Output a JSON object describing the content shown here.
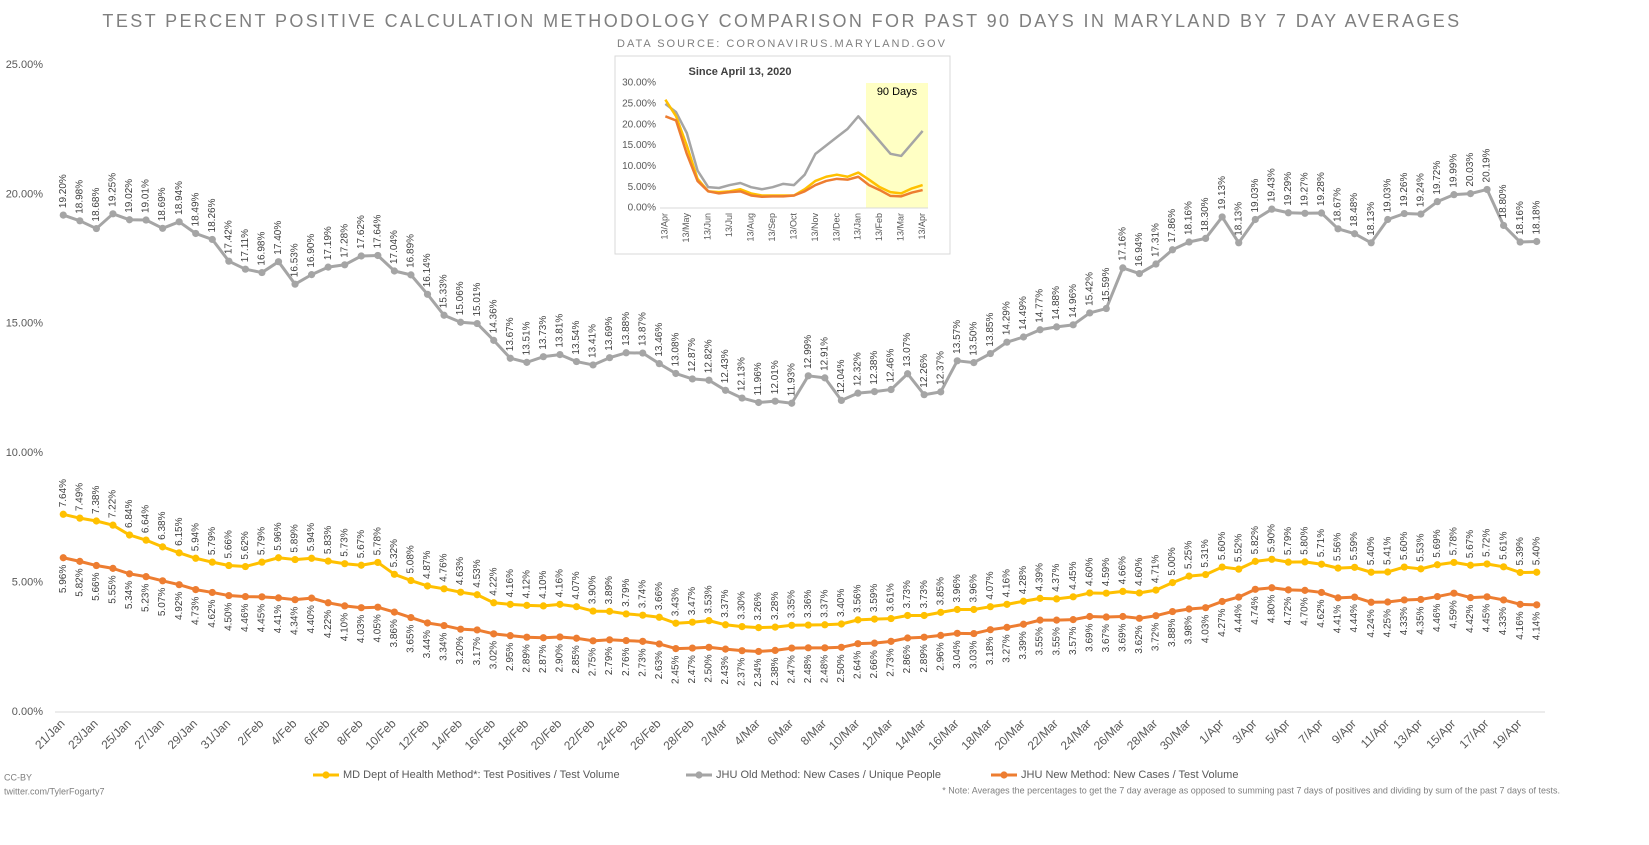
{
  "chart_data": [
    {
      "type": "line",
      "title": "TEST PERCENT POSITIVE CALCULATION METHODOLOGY COMPARISON FOR PAST 90 DAYS IN MARYLAND BY 7 DAY AVERAGES",
      "subtitle": "DATA SOURCE: CORONAVIRUS.MARYLAND.GOV",
      "categories": [
        "21/Jan",
        null,
        "23/Jan",
        null,
        "25/Jan",
        null,
        "27/Jan",
        null,
        "29/Jan",
        null,
        "31/Jan",
        null,
        "2/Feb",
        null,
        "4/Feb",
        null,
        "6/Feb",
        null,
        "8/Feb",
        null,
        "10/Feb",
        null,
        "12/Feb",
        null,
        "14/Feb",
        null,
        "16/Feb",
        null,
        "18/Feb",
        null,
        "20/Feb",
        null,
        "22/Feb",
        null,
        "24/Feb",
        null,
        "26/Feb",
        null,
        "28/Feb",
        null,
        "2/Mar",
        null,
        "4/Mar",
        null,
        "6/Mar",
        null,
        "8/Mar",
        null,
        "10/Mar",
        null,
        "12/Mar",
        null,
        "14/Mar",
        null,
        "16/Mar",
        null,
        "18/Mar",
        null,
        "20/Mar",
        null,
        "22/Mar",
        null,
        "24/Mar",
        null,
        "26/Mar",
        null,
        "28/Mar",
        null,
        "30/Mar",
        null,
        "1/Apr",
        null,
        "3/Apr",
        null,
        "5/Apr",
        null,
        "7/Apr",
        null,
        "9/Apr",
        null,
        "11/Apr",
        null,
        "13/Apr",
        null,
        "15/Apr",
        null,
        "17/Apr",
        null,
        "19/Apr",
        null
      ],
      "ylim": [
        0,
        25
      ],
      "yticks": [
        {
          "value": 0,
          "label": "0.00%"
        },
        {
          "value": 5,
          "label": "5.00%"
        },
        {
          "value": 10,
          "label": "10.00%"
        },
        {
          "value": 15,
          "label": "15.00%"
        },
        {
          "value": 20,
          "label": "20.00%"
        },
        {
          "value": 25,
          "label": "25.00%"
        }
      ],
      "grid": false,
      "legend": "bottom",
      "series": [
        {
          "name": "MD Dept of Health Method*: Test Positives / Test Volume",
          "color": "#ffc000",
          "label_position": "above",
          "values": [
            7.64,
            7.49,
            7.38,
            7.22,
            6.84,
            6.64,
            6.38,
            6.15,
            5.94,
            5.79,
            5.66,
            5.62,
            5.79,
            5.96,
            5.89,
            5.94,
            5.83,
            5.73,
            5.67,
            5.78,
            5.32,
            5.08,
            4.87,
            4.76,
            4.63,
            4.53,
            4.22,
            4.16,
            4.12,
            4.1,
            4.16,
            4.07,
            3.9,
            3.89,
            3.79,
            3.74,
            3.66,
            3.43,
            3.47,
            3.53,
            3.37,
            3.3,
            3.26,
            3.28,
            3.35,
            3.36,
            3.37,
            3.4,
            3.56,
            3.59,
            3.61,
            3.73,
            3.73,
            3.85,
            3.96,
            3.96,
            4.07,
            4.16,
            4.28,
            4.39,
            4.37,
            4.45,
            4.6,
            4.59,
            4.66,
            4.6,
            4.71,
            5.0,
            5.25,
            5.31,
            5.6,
            5.52,
            5.82,
            5.9,
            5.79,
            5.8,
            5.71,
            5.56,
            5.59,
            5.4,
            5.41,
            5.6,
            5.53,
            5.69,
            5.78,
            5.67,
            5.72,
            5.61,
            5.39,
            5.4
          ],
          "value_labels": [
            "7.64%",
            "7.49%",
            "7.38%",
            "7.22%",
            "6.84%",
            "6.64%",
            "6.38%",
            "6.15%",
            "5.94%",
            "5.79%",
            "5.66%",
            "5.62%",
            "5.79%",
            "5.96%",
            "5.89%",
            "5.94%",
            "5.83%",
            "5.73%",
            "5.67%",
            "5.78%",
            "5.32%",
            "5.08%",
            "4.87%",
            "4.76%",
            "4.63%",
            "4.53%",
            "4.22%",
            "4.16%",
            "4.12%",
            "4.10%",
            "4.16%",
            "4.07%",
            "3.90%",
            "3.89%",
            "3.79%",
            "3.74%",
            "3.66%",
            "3.43%",
            "3.47%",
            "3.53%",
            "3.37%",
            "3.30%",
            "3.26%",
            "3.28%",
            "3.35%",
            "3.36%",
            "3.37%",
            "3.40%",
            "3.56%",
            "3.59%",
            "3.61%",
            "3.73%",
            "3.73%",
            "3.85%",
            "3.96%",
            "3.96%",
            "4.07%",
            "4.16%",
            "4.28%",
            "4.39%",
            "4.37%",
            "4.45%",
            "4.60%",
            "4.59%",
            "4.66%",
            "4.60%",
            "4.71%",
            "5.00%",
            "5.25%",
            "5.31%",
            "5.60%",
            "5.52%",
            "5.82%",
            "5.90%",
            "5.79%",
            "5.80%",
            "5.71%",
            "5.56%",
            "5.59%",
            "5.40%",
            "5.41%",
            "5.60%",
            "5.53%",
            "5.69%",
            "5.78%",
            "5.67%",
            "5.72%",
            "5.61%",
            "5.39%",
            "5.40%"
          ]
        },
        {
          "name": "JHU Old Method: New Cases / Unique People",
          "color": "#a5a5a5",
          "label_position": "above",
          "values": [
            19.2,
            18.98,
            18.68,
            19.25,
            19.02,
            19.01,
            18.69,
            18.94,
            18.49,
            18.26,
            17.42,
            17.11,
            16.98,
            17.4,
            16.53,
            16.9,
            17.19,
            17.28,
            17.62,
            17.64,
            17.04,
            16.89,
            16.14,
            15.33,
            15.06,
            15.01,
            14.36,
            13.67,
            13.51,
            13.73,
            13.81,
            13.54,
            13.41,
            13.69,
            13.88,
            13.87,
            13.46,
            13.08,
            12.87,
            12.82,
            12.43,
            12.13,
            11.96,
            12.01,
            11.93,
            12.99,
            12.91,
            12.04,
            12.32,
            12.38,
            12.46,
            13.07,
            12.26,
            12.37,
            13.57,
            13.5,
            13.85,
            14.29,
            14.49,
            14.77,
            14.88,
            14.96,
            15.42,
            15.59,
            17.16,
            16.94,
            17.31,
            17.86,
            18.16,
            18.3,
            19.13,
            18.13,
            19.03,
            19.43,
            19.29,
            19.27,
            19.28,
            18.67,
            18.48,
            18.13,
            19.03,
            19.26,
            19.24,
            19.72,
            19.99,
            20.03,
            20.19,
            18.8,
            18.16,
            18.18
          ],
          "value_labels": [
            "19.20%",
            "18.98%",
            "18.68%",
            "19.25%",
            "19.02%",
            "19.01%",
            "18.69%",
            "18.94%",
            "18.49%",
            "18.26%",
            "17.42%",
            "17.11%",
            "16.98%",
            "17.40%",
            "16.53%",
            "16.90%",
            "17.19%",
            "17.28%",
            "17.62%",
            "17.64%",
            "17.04%",
            "16.89%",
            "16.14%",
            "15.33%",
            "15.06%",
            "15.01%",
            "14.36%",
            "13.67%",
            "13.51%",
            "13.73%",
            "13.81%",
            "13.54%",
            "13.41%",
            "13.69%",
            "13.88%",
            "13.87%",
            "13.46%",
            "13.08%",
            "12.87%",
            "12.82%",
            "12.43%",
            "12.13%",
            "11.96%",
            "12.01%",
            "11.93%",
            "12.99%",
            "12.91%",
            "12.04%",
            "12.32%",
            "12.38%",
            "12.46%",
            "13.07%",
            "12.26%",
            "12.37%",
            "13.57%",
            "13.50%",
            "13.85%",
            "14.29%",
            "14.49%",
            "14.77%",
            "14.88%",
            "14.96%",
            "15.42%",
            "15.59%",
            "17.16%",
            "16.94%",
            "17.31%",
            "17.86%",
            "18.16%",
            "18.30%",
            "19.13%",
            "18.13%",
            "19.03%",
            "19.43%",
            "19.29%",
            "19.27%",
            "19.28%",
            "18.67%",
            "18.48%",
            "18.13%",
            "19.03%",
            "19.26%",
            "19.24%",
            "19.72%",
            "19.99%",
            "20.03%",
            "20.19%",
            "18.80%",
            "18.16%",
            "18.18%"
          ]
        },
        {
          "name": "JHU New Method: New Cases / Test Volume",
          "color": "#ed7d31",
          "label_position": "below",
          "values": [
            5.96,
            5.82,
            5.66,
            5.55,
            5.34,
            5.23,
            5.07,
            4.92,
            4.73,
            4.62,
            4.5,
            4.46,
            4.45,
            4.41,
            4.34,
            4.4,
            4.22,
            4.1,
            4.03,
            4.05,
            3.86,
            3.65,
            3.44,
            3.34,
            3.2,
            3.17,
            3.02,
            2.95,
            2.89,
            2.87,
            2.9,
            2.85,
            2.75,
            2.79,
            2.76,
            2.73,
            2.63,
            2.45,
            2.47,
            2.5,
            2.43,
            2.37,
            2.34,
            2.38,
            2.47,
            2.48,
            2.48,
            2.5,
            2.64,
            2.66,
            2.73,
            2.86,
            2.89,
            2.96,
            3.04,
            3.03,
            3.18,
            3.27,
            3.39,
            3.55,
            3.55,
            3.57,
            3.69,
            3.67,
            3.69,
            3.62,
            3.72,
            3.88,
            3.98,
            4.03,
            4.27,
            4.44,
            4.74,
            4.8,
            4.72,
            4.7,
            4.62,
            4.41,
            4.44,
            4.24,
            4.25,
            4.33,
            4.35,
            4.46,
            4.59,
            4.42,
            4.45,
            4.33,
            4.16,
            4.14
          ],
          "value_labels": [
            "5.96%",
            "5.82%",
            "5.66%",
            "5.55%",
            "5.34%",
            "5.23%",
            "5.07%",
            "4.92%",
            "4.73%",
            "4.62%",
            "4.50%",
            "4.46%",
            "4.45%",
            "4.41%",
            "4.34%",
            "4.40%",
            "4.22%",
            "4.10%",
            "4.03%",
            "4.05%",
            "3.86%",
            "3.65%",
            "3.44%",
            "3.34%",
            "3.20%",
            "3.17%",
            "3.02%",
            "2.95%",
            "2.89%",
            "2.87%",
            "2.90%",
            "2.85%",
            "2.75%",
            "2.79%",
            "2.76%",
            "2.73%",
            "2.63%",
            "2.45%",
            "2.47%",
            "2.50%",
            "2.43%",
            "2.37%",
            "2.34%",
            "2.38%",
            "2.47%",
            "2.48%",
            "2.48%",
            "2.50%",
            "2.64%",
            "2.66%",
            "2.73%",
            "2.86%",
            "2.89%",
            "2.96%",
            "3.04%",
            "3.03%",
            "3.18%",
            "3.27%",
            "3.39%",
            "3.55%",
            "3.55%",
            "3.57%",
            "3.69%",
            "3.67%",
            "3.69%",
            "3.62%",
            "3.72%",
            "3.88%",
            "3.98%",
            "4.03%",
            "4.27%",
            "4.44%",
            "4.74%",
            "4.80%",
            "4.72%",
            "4.70%",
            "4.62%",
            "4.41%",
            "4.44%",
            "4.24%",
            "4.25%",
            "4.33%",
            "4.35%",
            "4.46%",
            "4.59%",
            "4.42%",
            "4.45%",
            "4.33%",
            "4.16%",
            "4.14%"
          ]
        }
      ]
    },
    {
      "type": "line",
      "title": "Since April 13, 2020",
      "annotation": "90 Days",
      "categories": [
        "13/Apr",
        null,
        "13/May",
        null,
        "13/Jun",
        null,
        "13/Jul",
        null,
        "13/Aug",
        null,
        "13/Sep",
        null,
        "13/Oct",
        null,
        "13/Nov",
        null,
        "13/Dec",
        null,
        "13/Jan",
        null,
        "13/Feb",
        null,
        "13/Mar",
        null,
        "13/Apr"
      ],
      "ylim": [
        0,
        30
      ],
      "yticks": [
        {
          "value": 0,
          "label": "0.00%"
        },
        {
          "value": 5,
          "label": "5.00%"
        },
        {
          "value": 10,
          "label": "10.00%"
        },
        {
          "value": 15,
          "label": "15.00%"
        },
        {
          "value": 20,
          "label": "20.00%"
        },
        {
          "value": 25,
          "label": "25.00%"
        },
        {
          "value": 30,
          "label": "30.00%"
        }
      ],
      "grid": false,
      "series": [
        {
          "name": "JHU Old Method: New Cases / Unique People",
          "color": "#a5a5a5",
          "values": [
            25,
            23,
            18,
            9,
            5,
            4.8,
            5.5,
            6,
            5,
            4.5,
            5,
            5.8,
            5.5,
            8,
            13,
            15,
            17,
            19,
            22,
            19,
            16,
            13,
            12.5,
            15.5,
            18.5
          ]
        },
        {
          "name": "MD Dept of Health Method*: Test Positives / Test Volume",
          "color": "#ffc000",
          "values": [
            26,
            22,
            15,
            7,
            4,
            3.8,
            4,
            4.5,
            3.5,
            3,
            3,
            3,
            3,
            4.5,
            6.5,
            7.5,
            8,
            7.5,
            8.5,
            6.8,
            5,
            3.8,
            3.5,
            4.7,
            5.5
          ]
        },
        {
          "name": "JHU New Method: New Cases / Test Volume",
          "color": "#ed7d31",
          "values": [
            22,
            21,
            13,
            6.5,
            4,
            3.5,
            3.8,
            4,
            3,
            2.7,
            2.8,
            2.8,
            3,
            4,
            5.5,
            6.5,
            7,
            6.8,
            7.5,
            5.5,
            4.3,
            2.9,
            2.8,
            3.7,
            4.3
          ]
        }
      ]
    }
  ],
  "credits": [
    "CC-BY",
    "twitter.com/TylerFogarty7"
  ],
  "footnote": "* Note: Averages the percentages to get the 7 day average as opposed to summing past 7 days of positives and dividing by sum of the past 7 days of tests."
}
